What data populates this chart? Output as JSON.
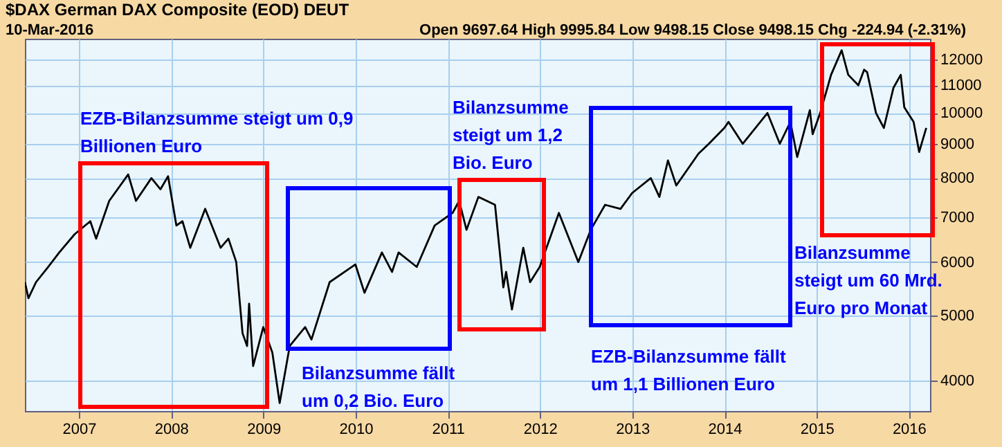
{
  "chart_data": {
    "type": "line",
    "title": "$DAX German DAX Composite (EOD) DEUT",
    "annotations": [
      "10-Mar-2016",
      "Open 9697.64  High 9995.84  Low 9498.15  Close 9498.15  Chg -224.94 (-2.31%)",
      "EZB-Bilanzsumme steigt um 0,9 Billionen Euro",
      "Bilanzsumme fällt um 0,2 Bio. Euro",
      "Bilanzsumme steigt um 1,2 Bio. Euro",
      "EZB-Bilanzsumme fällt um 1,1 Billionen Euro",
      "Bilanzsumme steigt um 60 Mrd. Euro pro Monat"
    ],
    "x": [
      "2006-06-01",
      "2006-06-15",
      "2006-07-15",
      "2006-09-01",
      "2006-10-15",
      "2006-12-15",
      "2007-02-15",
      "2007-03-10",
      "2007-05-01",
      "2007-07-15",
      "2007-08-15",
      "2007-10-15",
      "2007-11-20",
      "2007-12-20",
      "2008-01-22",
      "2008-02-15",
      "2008-03-17",
      "2008-05-15",
      "2008-07-15",
      "2008-08-15",
      "2008-09-15",
      "2008-10-10",
      "2008-10-28",
      "2008-11-05",
      "2008-11-21",
      "2008-12-31",
      "2009-02-05",
      "2009-03-06",
      "2009-04-15",
      "2009-06-15",
      "2009-07-10",
      "2009-09-20",
      "2009-12-31",
      "2010-02-05",
      "2010-04-15",
      "2010-05-25",
      "2010-06-20",
      "2010-08-31",
      "2010-11-10",
      "2011-01-20",
      "2011-02-15",
      "2011-03-16",
      "2011-05-02",
      "2011-07-07",
      "2011-08-09",
      "2011-08-20",
      "2011-09-12",
      "2011-10-27",
      "2011-11-23",
      "2011-12-31",
      "2012-03-16",
      "2012-06-01",
      "2012-07-20",
      "2012-09-15",
      "2012-11-15",
      "2012-12-31",
      "2013-03-15",
      "2013-04-18",
      "2013-05-22",
      "2013-06-24",
      "2013-09-20",
      "2013-10-31",
      "2013-12-31",
      "2014-01-17",
      "2014-03-14",
      "2014-06-20",
      "2014-08-08",
      "2014-09-19",
      "2014-10-16",
      "2014-12-05",
      "2014-12-16",
      "2015-01-15",
      "2015-02-27",
      "2015-04-10",
      "2015-05-06",
      "2015-06-15",
      "2015-07-08",
      "2015-07-20",
      "2015-08-24",
      "2015-09-24",
      "2015-11-01",
      "2015-11-30",
      "2015-12-14",
      "2016-01-20",
      "2016-02-11",
      "2016-03-10"
    ],
    "values": [
      5600,
      5300,
      5600,
      5900,
      6200,
      6600,
      6900,
      6500,
      7400,
      8100,
      7400,
      8000,
      7700,
      8050,
      6800,
      6900,
      6300,
      7200,
      6300,
      6500,
      6000,
      4700,
      4500,
      5200,
      4200,
      4800,
      4400,
      3700,
      4500,
      4800,
      4600,
      5600,
      5950,
      5400,
      6200,
      5800,
      6200,
      5900,
      6800,
      7100,
      7400,
      6700,
      7500,
      7300,
      5500,
      5800,
      5100,
      6300,
      5600,
      5900,
      7100,
      6000,
      6700,
      7300,
      7200,
      7600,
      8000,
      7500,
      8500,
      7800,
      8700,
      9000,
      9500,
      9700,
      9000,
      10000,
      9000,
      9700,
      8600,
      10100,
      9300,
      10000,
      11400,
      12400,
      11400,
      11000,
      11600,
      11500,
      10000,
      9500,
      10900,
      11400,
      10200,
      9700,
      8750,
      9500
    ],
    "color": "#000000",
    "xlim": [
      "2006-06-01",
      "2016-03-25"
    ],
    "xticks": [
      "2007",
      "2008",
      "2009",
      "2010",
      "2011",
      "2012",
      "2013",
      "2014",
      "2015",
      "2016"
    ],
    "ylim": [
      3600,
      12900
    ],
    "yticks": [
      4000,
      5000,
      6000,
      7000,
      8000,
      9000,
      10000,
      11000,
      12000
    ],
    "log": true,
    "grid": true
  }
}
